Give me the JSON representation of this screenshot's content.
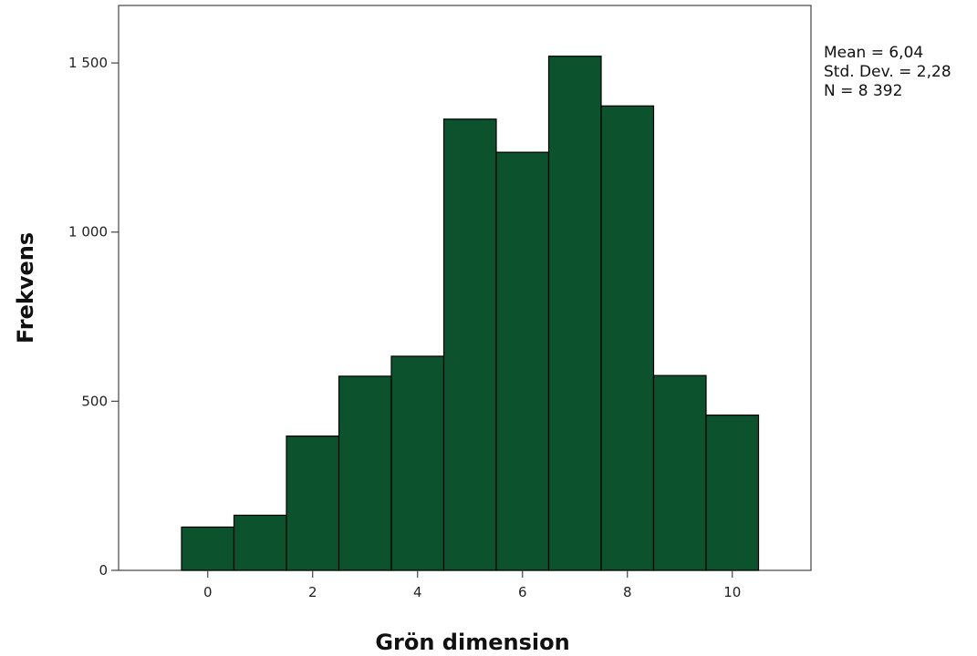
{
  "chart_data": {
    "type": "bar",
    "subtype": "histogram",
    "xlabel": "Grön dimension",
    "ylabel": "Frekvens",
    "bins": [
      0,
      1,
      2,
      3,
      4,
      5,
      6,
      7,
      8,
      9,
      10
    ],
    "values": [
      128,
      163,
      397,
      574,
      633,
      1334,
      1236,
      1520,
      1373,
      576,
      459
    ],
    "xlim": [
      -1.7,
      11.5
    ],
    "ylim": [
      0,
      1670
    ],
    "x_ticks": [
      {
        "value": 0,
        "label": "0"
      },
      {
        "value": 2,
        "label": "2"
      },
      {
        "value": 4,
        "label": "4"
      },
      {
        "value": 6,
        "label": "6"
      },
      {
        "value": 8,
        "label": "8"
      },
      {
        "value": 10,
        "label": "10"
      }
    ],
    "y_ticks": [
      {
        "value": 0,
        "label": "0"
      },
      {
        "value": 500,
        "label": "500"
      },
      {
        "value": 1000,
        "label": "1 000"
      },
      {
        "value": 1500,
        "label": "1 500"
      }
    ],
    "stats": {
      "mean": "Mean = 6,04",
      "std": "Std. Dev. = 2,28",
      "n": "N = 8 392"
    },
    "grid": false,
    "bar_color": "#0b522d",
    "bar_edge_color": "#000000"
  }
}
